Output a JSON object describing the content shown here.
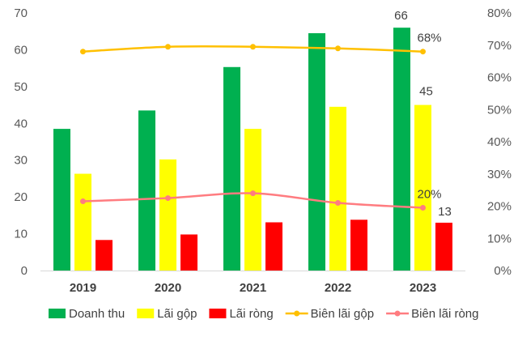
{
  "chart_data": {
    "type": "bar",
    "categories": [
      "2019",
      "2020",
      "2021",
      "2022",
      "2023"
    ],
    "ylim_left": [
      0,
      70
    ],
    "yticks_left": [
      "0",
      "10",
      "20",
      "30",
      "40",
      "50",
      "60",
      "70"
    ],
    "ylim_right": [
      0,
      0.8
    ],
    "yticks_right": [
      "0%",
      "10%",
      "20%",
      "30%",
      "40%",
      "50%",
      "60%",
      "70%",
      "80%"
    ],
    "series": [
      {
        "name": "Doanh thu",
        "kind": "bar",
        "axis": "left",
        "color": "#00b050",
        "values": [
          38.5,
          43.5,
          55.3,
          64.5,
          66
        ]
      },
      {
        "name": "Lãi gộp",
        "kind": "bar",
        "axis": "left",
        "color": "#ffff00",
        "values": [
          26.3,
          30.2,
          38.5,
          44.5,
          45
        ]
      },
      {
        "name": "Lãi ròng",
        "kind": "bar",
        "axis": "left",
        "color": "#ff0000",
        "values": [
          8.3,
          9.8,
          13.1,
          13.8,
          13
        ]
      },
      {
        "name": "Biên lãi gộp",
        "kind": "line",
        "axis": "right",
        "color": "#ffc000",
        "values": [
          0.68,
          0.695,
          0.695,
          0.69,
          0.68
        ]
      },
      {
        "name": "Biên lãi ròng",
        "kind": "line",
        "axis": "right",
        "color": "#ff7c80",
        "values": [
          0.215,
          0.225,
          0.24,
          0.21,
          0.195
        ]
      }
    ],
    "data_labels": [
      {
        "series": "Doanh thu",
        "category": "2023",
        "text": "66"
      },
      {
        "series": "Lãi gộp",
        "category": "2023",
        "text": "45"
      },
      {
        "series": "Lãi ròng",
        "category": "2023",
        "text": "13"
      },
      {
        "series": "Biên lãi gộp",
        "category": "2023",
        "text": "68%"
      },
      {
        "series": "Biên lãi ròng",
        "category": "2023",
        "text": "20%"
      }
    ],
    "grid": false,
    "legend_position": "bottom"
  }
}
